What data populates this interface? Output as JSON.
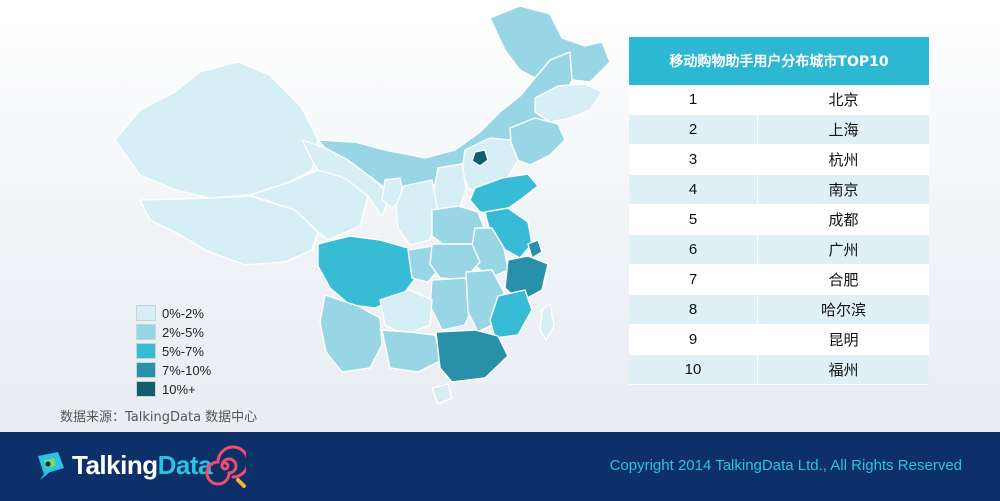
{
  "map": {
    "colors": {
      "bin0": "#d6eef5",
      "bin1": "#98d6e6",
      "bin2": "#38bcd6",
      "bin3": "#2890a9",
      "bin4": "#125e70"
    }
  },
  "legend": [
    {
      "label": "0%-2%",
      "color": "#d6eef5"
    },
    {
      "label": "2%-5%",
      "color": "#98d6e6"
    },
    {
      "label": "5%-7%",
      "color": "#38bcd6"
    },
    {
      "label": "7%-10%",
      "color": "#2890a9"
    },
    {
      "label": "10%+",
      "color": "#125e70"
    }
  ],
  "source": "数据来源：TalkingData 数据中心",
  "table": {
    "title": "移动购物助手用户分布城市TOP10",
    "header_color": "#2cb7d3",
    "rows": [
      {
        "rank": "1",
        "city": "北京"
      },
      {
        "rank": "2",
        "city": "上海"
      },
      {
        "rank": "3",
        "city": "杭州"
      },
      {
        "rank": "4",
        "city": "南京"
      },
      {
        "rank": "5",
        "city": "成都"
      },
      {
        "rank": "6",
        "city": "广州"
      },
      {
        "rank": "7",
        "city": "合肥"
      },
      {
        "rank": "8",
        "city": "哈尔滨"
      },
      {
        "rank": "9",
        "city": "昆明"
      },
      {
        "rank": "10",
        "city": "福州"
      }
    ]
  },
  "footer": {
    "logo_a": "Talking",
    "logo_b": "Data",
    "copyright": "Copyright 2014 TalkingData Ltd., All Rights Reserved",
    "background": "#0d2f6a",
    "accent": "#2ec1e0"
  }
}
